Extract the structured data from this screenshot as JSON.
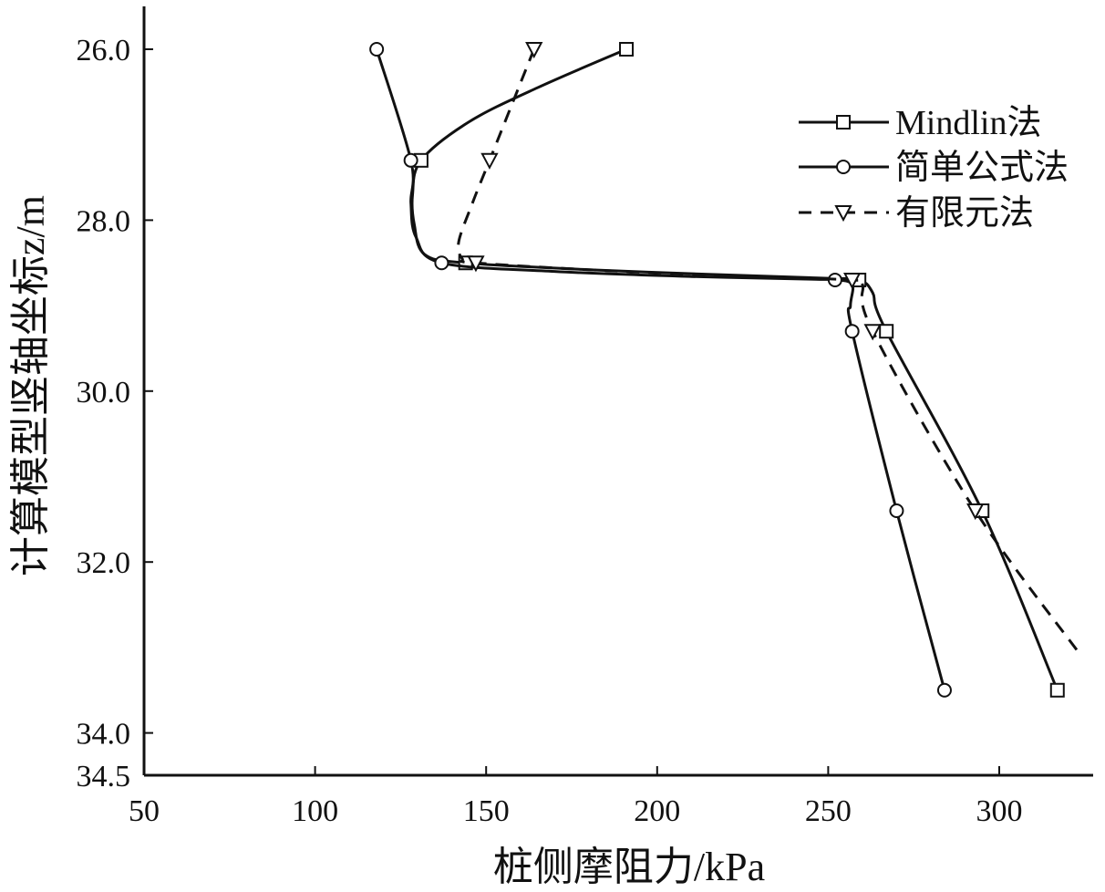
{
  "chart_data": {
    "type": "line",
    "xlabel": "桩侧摩阻力/kPa",
    "ylabel": "计算模型竖轴坐标z/m",
    "xlim": [
      50,
      328
    ],
    "ylim": [
      34.5,
      25.5
    ],
    "y_inverted": true,
    "x_ticks": [
      50,
      100,
      150,
      200,
      250,
      300
    ],
    "x_tick_labels": [
      "50",
      "100",
      "150",
      "200",
      "250",
      "300"
    ],
    "y_ticks": [
      26.0,
      28.0,
      30.0,
      32.0,
      34.0,
      34.5
    ],
    "y_tick_labels": [
      "26.0",
      "28.0",
      "30.0",
      "32.0",
      "34.0",
      "34.5"
    ],
    "grid": false,
    "legend_position": "top-right",
    "series": [
      {
        "name": "Mindlin法",
        "style": "solid",
        "marker": "square",
        "points": [
          [
            191,
            26.0
          ],
          [
            131,
            27.3
          ],
          [
            144,
            28.5
          ],
          [
            259,
            28.7
          ],
          [
            267,
            29.3
          ],
          [
            295,
            31.4
          ],
          [
            317,
            33.5
          ]
        ],
        "curve": [
          [
            191,
            26.0
          ],
          [
            165,
            26.45
          ],
          [
            145,
            26.85
          ],
          [
            131,
            27.3
          ],
          [
            128.5,
            27.7
          ],
          [
            129,
            28.05
          ],
          [
            132,
            28.4
          ],
          [
            144,
            28.5
          ],
          [
            180,
            28.58
          ],
          [
            220,
            28.64
          ],
          [
            250,
            28.68
          ],
          [
            259,
            28.7
          ],
          [
            263,
            28.85
          ],
          [
            267,
            29.3
          ],
          [
            295,
            31.4
          ],
          [
            317,
            33.5
          ]
        ]
      },
      {
        "name": "简单公式法",
        "style": "solid",
        "marker": "circle",
        "points": [
          [
            118,
            26.0
          ],
          [
            128,
            27.3
          ],
          [
            137,
            28.5
          ],
          [
            252,
            28.7
          ],
          [
            257,
            29.3
          ],
          [
            270,
            31.4
          ],
          [
            284,
            33.5
          ]
        ],
        "curve": [
          [
            118,
            26.0
          ],
          [
            128,
            27.3
          ],
          [
            128,
            27.8
          ],
          [
            129.5,
            28.2
          ],
          [
            137,
            28.5
          ],
          [
            170,
            28.6
          ],
          [
            210,
            28.66
          ],
          [
            245,
            28.69
          ],
          [
            252,
            28.7
          ],
          [
            257,
            28.75
          ],
          [
            256.5,
            29.0
          ],
          [
            257,
            29.3
          ],
          [
            270,
            31.4
          ],
          [
            284,
            33.5
          ]
        ]
      },
      {
        "name": "有限元法",
        "style": "dashed",
        "marker": "triangle-down",
        "points": [
          [
            164,
            26.0
          ],
          [
            151,
            27.3
          ],
          [
            147,
            28.5
          ],
          [
            257,
            28.7
          ],
          [
            263,
            29.3
          ],
          [
            293,
            31.4
          ]
        ],
        "curve": [
          [
            164,
            26.0
          ],
          [
            151,
            27.3
          ],
          [
            146,
            27.8
          ],
          [
            142,
            28.25
          ],
          [
            143,
            28.45
          ],
          [
            147,
            28.5
          ],
          [
            185,
            28.59
          ],
          [
            230,
            28.66
          ],
          [
            257,
            28.7
          ],
          [
            260,
            28.75
          ],
          [
            263,
            29.3
          ],
          [
            293,
            31.4
          ],
          [
            324,
            33.1
          ]
        ]
      }
    ]
  }
}
